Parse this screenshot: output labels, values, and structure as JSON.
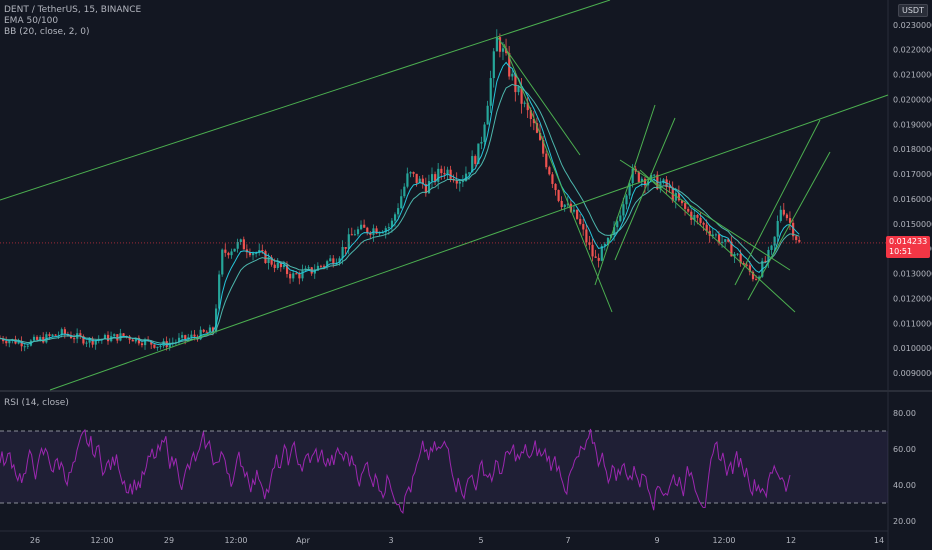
{
  "symbol_line": "DENT / TetherUS, 15, BINANCE",
  "indicators": [
    "EMA 50/100",
    "BB (20, close, 2, 0)"
  ],
  "rsi_label": "RSI (14, close)",
  "currency_badge": "USDT",
  "price_badge": {
    "price": "0.014233",
    "countdown": "10:51"
  },
  "colors": {
    "background": "#131722",
    "candle_up": "#26a69a",
    "candle_down": "#ef5350",
    "trendline": "#4caf50",
    "rsi": "#9c27b0",
    "price_line": "#f23645"
  },
  "chart_data": [
    {
      "type": "candlestick",
      "title": "",
      "x_ticks": [
        "26",
        "12:00",
        "29",
        "12:00",
        "Apr",
        "3",
        "5",
        "7",
        "9",
        "12:00",
        "12",
        "14"
      ],
      "y_ticks": [
        "0.0230000",
        "0.0220000",
        "0.0210000",
        "0.0200000",
        "0.0190000",
        "0.0180000",
        "0.0170000",
        "0.0160000",
        "0.0150000",
        "0.0140000",
        "0.0130000",
        "0.0120000",
        "0.0110000",
        "0.0100000",
        "0.0090000"
      ],
      "ylim": [
        0.0084,
        0.024
      ],
      "last_price": 0.014233,
      "price_path": [
        [
          0,
          0.0104
        ],
        [
          0.03,
          0.0102
        ],
        [
          0.07,
          0.0106
        ],
        [
          0.1,
          0.0103
        ],
        [
          0.14,
          0.0105
        ],
        [
          0.18,
          0.0101
        ],
        [
          0.21,
          0.0104
        ],
        [
          0.24,
          0.0107
        ],
        [
          0.25,
          0.0138
        ],
        [
          0.27,
          0.0142
        ],
        [
          0.3,
          0.0136
        ],
        [
          0.33,
          0.0129
        ],
        [
          0.35,
          0.0131
        ],
        [
          0.38,
          0.0137
        ],
        [
          0.4,
          0.0147
        ],
        [
          0.44,
          0.0149
        ],
        [
          0.46,
          0.017
        ],
        [
          0.48,
          0.0165
        ],
        [
          0.5,
          0.0172
        ],
        [
          0.52,
          0.0168
        ],
        [
          0.54,
          0.018
        ],
        [
          0.56,
          0.0225
        ],
        [
          0.58,
          0.0205
        ],
        [
          0.6,
          0.019
        ],
        [
          0.63,
          0.016
        ],
        [
          0.65,
          0.0152
        ],
        [
          0.67,
          0.0135
        ],
        [
          0.69,
          0.0145
        ],
        [
          0.71,
          0.017
        ],
        [
          0.73,
          0.0168
        ],
        [
          0.75,
          0.0165
        ],
        [
          0.77,
          0.0156
        ],
        [
          0.79,
          0.015
        ],
        [
          0.81,
          0.0144
        ],
        [
          0.83,
          0.0137
        ],
        [
          0.85,
          0.0128
        ],
        [
          0.87,
          0.014
        ],
        [
          0.88,
          0.0158
        ],
        [
          0.9,
          0.0142
        ]
      ],
      "series": [
        {
          "name": "EMA 50",
          "values_ref": "smoothed price"
        },
        {
          "name": "EMA 100",
          "values_ref": "smoothed price"
        }
      ]
    },
    {
      "type": "line",
      "title": "RSI (14, close)",
      "y_ticks": [
        "80.00",
        "60.00",
        "40.00",
        "20.00"
      ],
      "ylim": [
        15,
        90
      ],
      "bands": [
        30,
        70
      ],
      "shaded_range": [
        30,
        70
      ]
    }
  ]
}
